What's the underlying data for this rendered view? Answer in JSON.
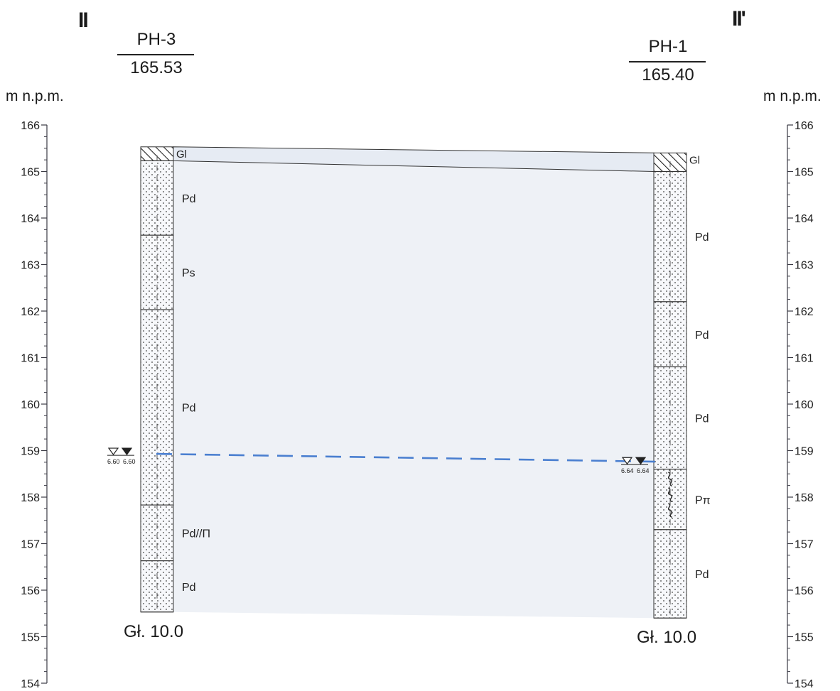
{
  "section": {
    "left_id": "II",
    "right_id": "II'"
  },
  "axis": {
    "unit": "m n.p.m.",
    "min": 154,
    "max": 166,
    "ticks": [
      "166",
      "165",
      "164",
      "163",
      "162",
      "161",
      "160",
      "159",
      "158",
      "157",
      "156",
      "155",
      "154"
    ]
  },
  "boreholes": [
    {
      "name": "PH-3",
      "elevation": "165.53",
      "depth_label": "Gł. 10.0",
      "top": 165.53,
      "bottom": 155.53,
      "layers": [
        {
          "label": "Gl",
          "top": 165.53,
          "bottom": 165.23,
          "pattern": "hatch"
        },
        {
          "label": "Pd",
          "top": 165.23,
          "bottom": 163.63,
          "pattern": "dots"
        },
        {
          "label": "Ps",
          "top": 163.63,
          "bottom": 162.03,
          "pattern": "dots"
        },
        {
          "label": "Pd",
          "top": 162.03,
          "bottom": 157.83,
          "pattern": "dots"
        },
        {
          "label": "Pd//Π",
          "top": 157.83,
          "bottom": 156.63,
          "pattern": "dots"
        },
        {
          "label": "Pd",
          "top": 156.63,
          "bottom": 155.53,
          "pattern": "dots"
        }
      ],
      "water": {
        "label_a": "6.60",
        "label_b": "6.60",
        "level": 158.93
      }
    },
    {
      "name": "PH-1",
      "elevation": "165.40",
      "depth_label": "Gł. 10.0",
      "top": 165.4,
      "bottom": 155.4,
      "layers": [
        {
          "label": "Gl",
          "top": 165.4,
          "bottom": 165.0,
          "pattern": "hatch"
        },
        {
          "label": "Pd",
          "top": 165.0,
          "bottom": 162.2,
          "pattern": "dots"
        },
        {
          "label": "Pd",
          "top": 162.2,
          "bottom": 160.8,
          "pattern": "dots"
        },
        {
          "label": "Pd",
          "top": 160.8,
          "bottom": 158.6,
          "pattern": "dots"
        },
        {
          "label": "Pπ",
          "top": 158.6,
          "bottom": 157.3,
          "pattern": "wavy"
        },
        {
          "label": "Pd",
          "top": 157.3,
          "bottom": 155.4,
          "pattern": "dots"
        }
      ],
      "water": {
        "label_a": "6.64",
        "label_b": "6.64",
        "level": 158.76
      }
    }
  ],
  "colors": {
    "water_line": "#4a7fd0",
    "fill": "#eef1f6",
    "topsoil_band": "#e6ebf3",
    "axis": "#3a3a44"
  }
}
